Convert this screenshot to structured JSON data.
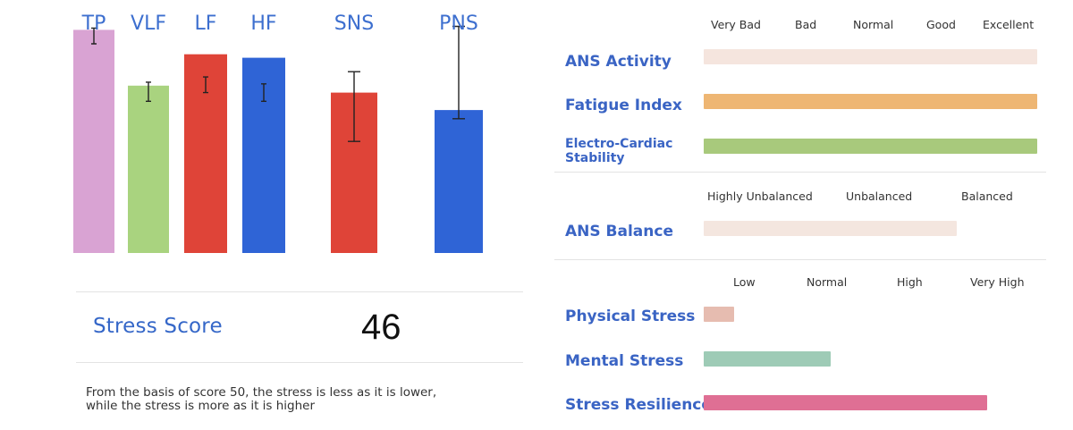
{
  "colors": {
    "tp": "#d9a3d3",
    "vlf": "#a9d37f",
    "lf": "#df4438",
    "hf": "#2f64d6",
    "sns": "#df4438",
    "pns": "#2f64d6",
    "ans_activity": "#e9c6b6",
    "fatigue_index": "#eeb673",
    "electro_cardiac": "#a8c97c",
    "ans_balance": "#e7c7b8",
    "physical_stress": "#e6bcb0",
    "mental_stress": "#9ecbb6",
    "stress_resilience": "#df6f94"
  },
  "chart_data": [
    {
      "type": "bar",
      "categories": [
        "TP",
        "VLF",
        "LF",
        "HF",
        "SNS",
        "PNS"
      ],
      "values": [
        6.4,
        4.8,
        5.7,
        5.6,
        4.6,
        4.1
      ],
      "error_low": [
        6.0,
        4.35,
        4.6,
        4.35,
        3.2,
        3.85
      ],
      "error_high": [
        6.45,
        4.9,
        5.05,
        4.85,
        5.2,
        6.5
      ],
      "ylim": [
        0,
        7
      ],
      "grid": false,
      "legend": "none"
    },
    {
      "type": "bar",
      "orientation": "horizontal",
      "groups": [
        {
          "scale": [
            "Very Bad",
            "Bad",
            "Normal",
            "Good",
            "Excellent"
          ],
          "rows": [
            {
              "label": "ANS Activity",
              "fraction": 1.0,
              "faint": true
            },
            {
              "label": "Fatigue Index",
              "fraction": 1.0,
              "faint": false
            },
            {
              "label": "Electro-Cardiac Stability",
              "fraction": 1.0,
              "faint": false
            }
          ]
        },
        {
          "scale": [
            "Highly Unbalanced",
            "Unbalanced",
            "Balanced"
          ],
          "rows": [
            {
              "label": "ANS Balance",
              "fraction": 0.76,
              "faint": true
            }
          ]
        },
        {
          "scale": [
            "Low",
            "Normal",
            "High",
            "Very High"
          ],
          "rows": [
            {
              "label": "Physical Stress",
              "fraction": 0.09,
              "faint": false
            },
            {
              "label": "Mental Stress",
              "fraction": 0.38,
              "faint": false
            },
            {
              "label": "Stress Resilience",
              "fraction": 0.85,
              "faint": false
            }
          ]
        }
      ]
    }
  ],
  "stress_score": {
    "label": "Stress Score",
    "value": "46",
    "note_line1": "From the basis of score 50, the stress is less as it is lower,",
    "note_line2": "while the stress is more as it is higher"
  }
}
